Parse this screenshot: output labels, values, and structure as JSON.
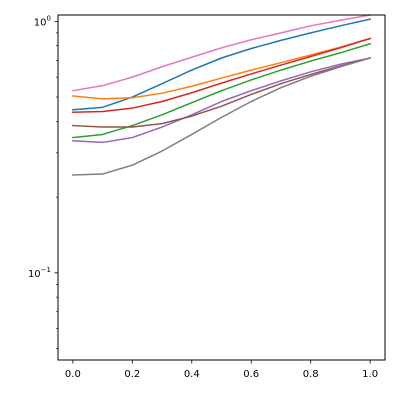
{
  "chart_data": {
    "type": "line",
    "title": "",
    "xlabel": "",
    "ylabel": "",
    "xlim": [
      -0.05,
      1.05
    ],
    "ylim": [
      0.045,
      1.06
    ],
    "yscale": "log",
    "grid": false,
    "x_ticks": [
      {
        "value": 0.0,
        "label": "0.0"
      },
      {
        "value": 0.2,
        "label": "0.2"
      },
      {
        "value": 0.4,
        "label": "0.4"
      },
      {
        "value": 0.6,
        "label": "0.6"
      },
      {
        "value": 0.8,
        "label": "0.8"
      },
      {
        "value": 1.0,
        "label": "1.0"
      }
    ],
    "y_major_ticks": [
      {
        "value": 0.1,
        "base": "10",
        "exp": "−1"
      },
      {
        "value": 1.0,
        "base": "10",
        "exp": "0"
      }
    ],
    "y_minor_ticks": [
      0.05,
      0.06,
      0.07,
      0.08,
      0.09,
      0.2,
      0.3,
      0.4,
      0.5,
      0.6,
      0.7,
      0.8,
      0.9
    ],
    "x": [
      0.0,
      0.1,
      0.2,
      0.3,
      0.4,
      0.5,
      0.6,
      0.7,
      0.8,
      0.9,
      1.0
    ],
    "series": [
      {
        "color": "#1f77b4",
        "values": [
          0.445,
          0.455,
          0.5,
          0.565,
          0.64,
          0.715,
          0.78,
          0.84,
          0.9,
          0.96,
          1.02
        ]
      },
      {
        "color": "#ff7f0e",
        "values": [
          0.505,
          0.492,
          0.497,
          0.518,
          0.552,
          0.595,
          0.64,
          0.685,
          0.735,
          0.79,
          0.855
        ]
      },
      {
        "color": "#2ca02c",
        "values": [
          0.345,
          0.355,
          0.385,
          0.425,
          0.475,
          0.53,
          0.585,
          0.64,
          0.695,
          0.75,
          0.815
        ]
      },
      {
        "color": "#d62728",
        "values": [
          0.435,
          0.438,
          0.452,
          0.48,
          0.52,
          0.568,
          0.618,
          0.67,
          0.725,
          0.785,
          0.855
        ]
      },
      {
        "color": "#9467bd",
        "values": [
          0.335,
          0.33,
          0.345,
          0.38,
          0.425,
          0.48,
          0.53,
          0.58,
          0.63,
          0.675,
          0.715
        ]
      },
      {
        "color": "#8c564b",
        "values": [
          0.385,
          0.38,
          0.38,
          0.392,
          0.42,
          0.46,
          0.512,
          0.565,
          0.615,
          0.665,
          0.715
        ]
      },
      {
        "color": "#e377c2",
        "values": [
          0.53,
          0.555,
          0.6,
          0.66,
          0.72,
          0.785,
          0.845,
          0.9,
          0.96,
          1.01,
          1.06
        ]
      },
      {
        "color": "#7f7f7f",
        "values": [
          0.245,
          0.247,
          0.268,
          0.305,
          0.355,
          0.415,
          0.48,
          0.545,
          0.605,
          0.66,
          0.715
        ]
      }
    ]
  }
}
